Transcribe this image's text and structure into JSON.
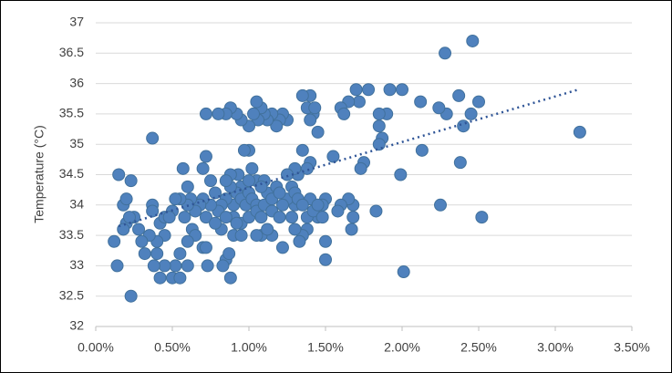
{
  "chart_data": {
    "type": "scatter",
    "y_label": "Temperature (°C)",
    "color": "#4f81bd",
    "grid": true,
    "xlim": [
      0,
      3.5
    ],
    "ylim": [
      32,
      37
    ],
    "xticks": [
      {
        "value": 0,
        "label": "0.00%"
      },
      {
        "value": 0.5,
        "label": "0.50%"
      },
      {
        "value": 1,
        "label": "1.00%"
      },
      {
        "value": 1.5,
        "label": "1.50%"
      },
      {
        "value": 2,
        "label": "2.00%"
      },
      {
        "value": 2.5,
        "label": "2.50%"
      },
      {
        "value": 3,
        "label": "3.00%"
      },
      {
        "value": 3.5,
        "label": "3.50%"
      }
    ],
    "yticks": [
      32,
      32.5,
      33,
      33.5,
      34,
      34.5,
      35,
      35.5,
      36,
      36.5,
      37
    ],
    "trendline": {
      "x": [
        0.15,
        3.15
      ],
      "y": [
        33.65,
        35.9
      ],
      "color": "#2f5597"
    },
    "x": [
      3.16,
      2.46,
      2.28,
      2.52,
      2.01,
      2.25,
      2.38,
      1.99,
      2.5,
      2.45,
      2.4,
      2.37,
      2.29,
      2.24,
      2.12,
      2.13,
      2.0,
      1.92,
      1.9,
      1.85,
      1.85,
      1.87,
      1.85,
      1.83,
      1.78,
      1.7,
      1.72,
      1.65,
      1.6,
      1.62,
      1.75,
      1.73,
      1.68,
      1.68,
      1.67,
      1.65,
      1.6,
      1.58,
      1.55,
      1.5,
      1.5,
      1.5,
      1.48,
      1.45,
      1.45,
      1.42,
      1.4,
      1.35,
      1.38,
      1.4,
      1.43,
      1.4,
      1.38,
      1.35,
      1.32,
      1.3,
      1.4,
      1.38,
      1.35,
      1.33,
      1.3,
      1.3,
      1.28,
      1.25,
      1.25,
      1.22,
      1.2,
      1.18,
      1.15,
      1.12,
      1.1,
      1.08,
      1.06,
      1.05,
      1.03,
      1.0,
      0.95,
      0.92,
      0.88,
      0.85,
      0.8,
      0.72,
      0.37,
      1.22,
      1.15,
      1.08,
      1.05,
      1.02,
      1.0,
      0.97,
      0.95,
      0.9,
      0.92,
      0.95,
      0.98,
      1.0,
      1.02,
      1.05,
      0.88,
      0.85,
      0.82,
      0.8,
      0.78,
      0.75,
      0.72,
      0.7,
      0.68,
      0.65,
      0.62,
      0.6,
      0.58,
      0.55,
      0.52,
      0.5,
      0.9,
      0.95,
      1.0,
      1.05,
      1.1,
      1.12,
      1.15,
      1.18,
      1.2,
      1.22,
      1.1,
      1.0,
      0.93,
      0.88,
      0.85,
      1.08,
      1.15,
      1.2,
      0.9,
      0.85,
      0.82,
      0.78,
      0.75,
      0.72,
      0.7,
      0.57,
      0.6,
      0.63,
      0.65,
      0.6,
      0.55,
      0.52,
      0.5,
      0.55,
      0.6,
      0.45,
      0.42,
      0.4,
      0.38,
      0.45,
      0.42,
      0.4,
      0.35,
      0.32,
      0.3,
      0.28,
      0.25,
      0.23,
      0.2,
      0.18,
      0.2,
      0.22,
      0.18,
      0.15,
      0.23,
      0.14,
      0.12,
      0.37,
      0.37,
      0.45,
      0.48,
      0.7,
      0.73,
      0.72,
      0.85,
      0.87,
      0.88,
      0.83,
      0.95,
      0.92,
      1.05,
      1.08,
      1.12,
      1.25,
      1.28,
      1.3,
      1.32,
      1.35,
      1.38,
      1.42,
      1.45,
      1.48
    ],
    "values": [
      35.2,
      36.7,
      36.5,
      33.8,
      32.9,
      34.0,
      34.7,
      34.5,
      35.7,
      35.5,
      35.3,
      35.8,
      35.5,
      35.6,
      35.7,
      34.9,
      35.9,
      35.9,
      35.5,
      35.5,
      35.3,
      35.1,
      35.0,
      33.9,
      35.9,
      35.9,
      35.7,
      35.7,
      35.6,
      35.5,
      34.7,
      34.6,
      34.0,
      33.8,
      33.6,
      34.1,
      34.0,
      33.9,
      34.8,
      33.1,
      33.4,
      34.1,
      34.0,
      33.8,
      35.2,
      35.5,
      35.8,
      35.8,
      35.6,
      35.4,
      35.6,
      34.7,
      34.6,
      34.9,
      34.5,
      34.6,
      34.1,
      33.6,
      33.5,
      33.4,
      33.6,
      34.0,
      33.8,
      34.1,
      35.4,
      35.5,
      35.4,
      35.3,
      35.5,
      35.4,
      35.5,
      35.6,
      35.4,
      35.7,
      35.5,
      35.3,
      35.4,
      35.5,
      35.6,
      35.5,
      35.5,
      35.5,
      35.1,
      33.3,
      33.5,
      33.5,
      34.4,
      34.6,
      34.9,
      34.9,
      34.3,
      34.0,
      34.2,
      34.1,
      34.0,
      34.2,
      34.1,
      34.0,
      34.3,
      34.1,
      34.0,
      33.9,
      34.2,
      34.0,
      33.8,
      34.1,
      34.0,
      33.9,
      34.1,
      34.0,
      33.8,
      34.1,
      34.1,
      33.9,
      33.8,
      33.7,
      33.8,
      33.9,
      34.0,
      34.2,
      34.1,
      34.3,
      34.2,
      34.0,
      34.4,
      34.4,
      34.5,
      34.5,
      34.4,
      34.3,
      33.9,
      33.8,
      33.5,
      33.8,
      33.6,
      33.7,
      34.4,
      34.8,
      34.6,
      34.6,
      34.3,
      33.6,
      33.5,
      33.4,
      33.2,
      33.0,
      32.8,
      32.8,
      33.0,
      33.0,
      32.8,
      33.2,
      33.0,
      33.5,
      33.7,
      33.4,
      33.5,
      33.2,
      33.4,
      33.6,
      33.8,
      32.5,
      33.7,
      34.0,
      34.1,
      33.8,
      33.6,
      34.5,
      34.4,
      33.0,
      33.4,
      34.0,
      33.9,
      33.8,
      33.8,
      33.3,
      33.0,
      33.3,
      33.1,
      33.2,
      32.8,
      33.0,
      33.5,
      33.7,
      33.5,
      33.8,
      33.6,
      34.5,
      34.3,
      34.2,
      34.1,
      34.0,
      33.8,
      33.9,
      34.0,
      33.8
    ]
  }
}
